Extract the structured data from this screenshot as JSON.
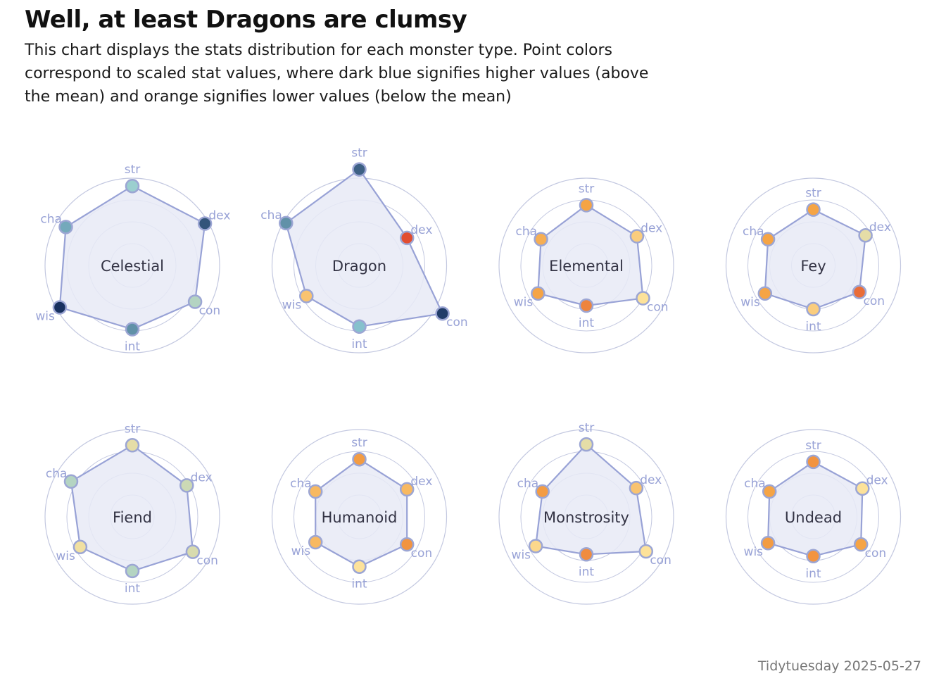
{
  "title": "Well, at least Dragons are clumsy",
  "subtitle": "This chart displays the stats distribution for each monster type. Point colors correspond to scaled stat values, where dark blue signifies higher values (above the mean) and orange signifies lower values (below the mean)",
  "caption": "Tidytuesday 2025-05-27",
  "chart_data": {
    "type": "radar",
    "axes": [
      "str",
      "dex",
      "con",
      "int",
      "wis",
      "cha"
    ],
    "rmax": 1.0,
    "rings": [
      0.25,
      0.5,
      0.75,
      1.0
    ],
    "color_scale": {
      "low": "#e0452e",
      "mid_low": "#f5a445",
      "mid": "#fde29a",
      "mid_high": "#8fcdd6",
      "high": "#18305f"
    },
    "colors": {
      "ring": "#c3c8e0",
      "polygon_fill": "#e8eaf6",
      "polygon_stroke": "#98a2d6",
      "axis_label": "#98a2d6",
      "center_label": "#333344",
      "point_stroke": "#9ca6d4"
    },
    "panels": [
      {
        "name": "Celestial",
        "values": [
          0.91,
          0.96,
          0.83,
          0.73,
          0.96,
          0.88
        ],
        "scaled": [
          0.6,
          1.7,
          0.4,
          1.2,
          2.0,
          1.0
        ]
      },
      {
        "name": "Dragon",
        "values": [
          1.1,
          0.63,
          1.1,
          0.7,
          0.7,
          0.97
        ],
        "scaled": [
          1.6,
          -1.9,
          1.9,
          0.8,
          -0.5,
          1.2
        ]
      },
      {
        "name": "Elemental",
        "values": [
          0.69,
          0.67,
          0.75,
          0.46,
          0.64,
          0.6
        ],
        "scaled": [
          -0.8,
          -0.4,
          -0.2,
          -1.2,
          -0.8,
          -0.7
        ]
      },
      {
        "name": "Fey",
        "values": [
          0.64,
          0.69,
          0.61,
          0.5,
          0.64,
          0.6
        ],
        "scaled": [
          -0.8,
          0.0,
          -1.5,
          -0.4,
          -0.8,
          -0.8
        ]
      },
      {
        "name": "Fiend",
        "values": [
          0.82,
          0.72,
          0.8,
          0.62,
          0.69,
          0.81
        ],
        "scaled": [
          0.0,
          0.2,
          0.1,
          0.4,
          -0.1,
          0.4
        ]
      },
      {
        "name": "Humanoid",
        "values": [
          0.66,
          0.63,
          0.63,
          0.57,
          0.58,
          0.58
        ],
        "scaled": [
          -0.9,
          -0.6,
          -1.0,
          -0.2,
          -0.6,
          -0.6
        ]
      },
      {
        "name": "Monstrosity",
        "values": [
          0.83,
          0.66,
          0.79,
          0.43,
          0.67,
          0.58
        ],
        "scaled": [
          0.0,
          -0.5,
          -0.2,
          -1.1,
          -0.3,
          -0.9
        ]
      },
      {
        "name": "Undead",
        "values": [
          0.63,
          0.65,
          0.63,
          0.45,
          0.6,
          0.58
        ],
        "scaled": [
          -1.0,
          -0.2,
          -0.8,
          -1.0,
          -0.9,
          -0.8
        ]
      }
    ]
  }
}
